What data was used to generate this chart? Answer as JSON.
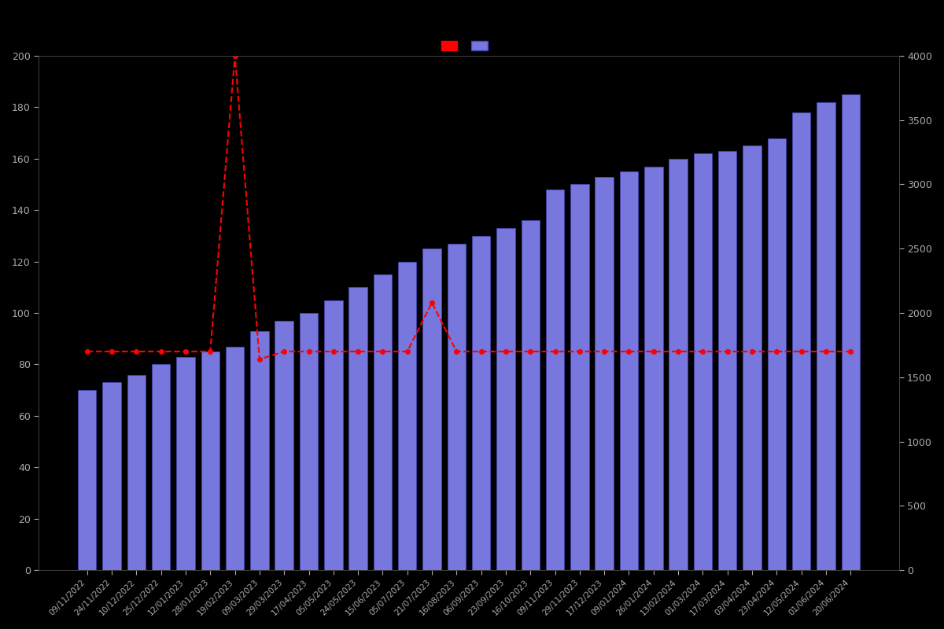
{
  "background_color": "#000000",
  "bar_color": "#7777dd",
  "bar_edge_color": "#4444bb",
  "line_color": "#ff0000",
  "text_color": "#aaaaaa",
  "left_ylim": [
    0,
    200
  ],
  "right_ylim": [
    0,
    4000
  ],
  "left_yticks": [
    0,
    20,
    40,
    60,
    80,
    100,
    120,
    140,
    160,
    180,
    200
  ],
  "right_yticks": [
    0,
    500,
    1000,
    1500,
    2000,
    2500,
    3000,
    3500,
    4000
  ],
  "dates": [
    "09/11/2022",
    "24/11/2022",
    "10/12/2022",
    "25/12/2022",
    "12/01/2023",
    "28/01/2023",
    "19/02/2023",
    "09/03/2023",
    "29/03/2023",
    "17/04/2023",
    "05/05/2023",
    "24/05/2023",
    "15/06/2023",
    "05/07/2023",
    "21/07/2023",
    "16/08/2023",
    "06/09/2023",
    "23/09/2023",
    "16/10/2023",
    "09/11/2023",
    "29/11/2023",
    "17/12/2023",
    "09/01/2024",
    "26/01/2024",
    "13/02/2024",
    "01/03/2024",
    "17/03/2024",
    "03/04/2024",
    "23/04/2024",
    "12/05/2024",
    "01/06/2024",
    "20/06/2024"
  ],
  "bar_values": [
    70,
    73,
    76,
    80,
    83,
    85,
    87,
    93,
    97,
    100,
    105,
    110,
    115,
    120,
    125,
    127,
    130,
    133,
    136,
    148,
    150,
    153,
    155,
    157,
    160,
    162,
    163,
    165,
    168,
    178,
    182,
    185
  ],
  "line_values": [
    85,
    85,
    85,
    85,
    85,
    85,
    200,
    82,
    85,
    85,
    85,
    85,
    85,
    85,
    104,
    85,
    85,
    85,
    85,
    85,
    85,
    85,
    85,
    85,
    85,
    85,
    85,
    85,
    85,
    85,
    85,
    85
  ],
  "figsize": [
    12,
    8
  ],
  "dpi": 100,
  "line_linewidth": 1.5,
  "line_marker": "o",
  "line_markersize": 4,
  "line_linestyle": "--",
  "bar_width": 0.75,
  "spine_color": "#444444"
}
